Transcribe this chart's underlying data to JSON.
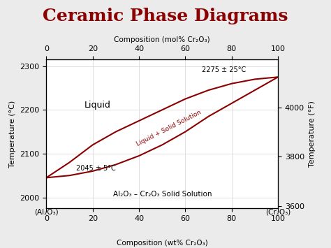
{
  "title": "Ceramic Phase Diagrams",
  "title_color": "#8B0000",
  "title_fontsize": 18,
  "title_fontweight": "bold",
  "bg_color": "#ebebeb",
  "plot_bg_color": "#ffffff",
  "curve_color": "#8B0000",
  "liquidus_x": [
    0,
    10,
    20,
    30,
    40,
    50,
    60,
    70,
    80,
    90,
    100
  ],
  "liquidus_y": [
    2045,
    2080,
    2120,
    2150,
    2175,
    2200,
    2225,
    2245,
    2260,
    2270,
    2275
  ],
  "solidus_x": [
    0,
    10,
    20,
    30,
    40,
    50,
    60,
    70,
    80,
    90,
    100
  ],
  "solidus_y": [
    2045,
    2050,
    2060,
    2075,
    2095,
    2120,
    2150,
    2185,
    2215,
    2245,
    2275
  ],
  "ylim_C": [
    1975,
    2315
  ],
  "ylim_F": [
    3590,
    4195
  ],
  "xlim": [
    0,
    100
  ],
  "xlabel_bottom": "Composition (wt% Cr₂O₃)",
  "xlabel_top": "Composition (mol% Cr₂O₃)",
  "ylabel_left": "Temperature (°C)",
  "ylabel_right": "Temperature (°F)",
  "label_liquid": "Liquid",
  "label_two_phase": "Liquid + Solid Solution",
  "label_solid": "Al₂O₃ – Cr₂O₃ Solid Solution",
  "annot_low": "2045 ± 5°C",
  "annot_high": "2275 ± 25°C",
  "label_xlow": "(Al₂O₃)",
  "label_xhigh": "(Cr₂O₃)",
  "yticks_C": [
    2000,
    2100,
    2200,
    2300
  ],
  "yticks_F": [
    3600,
    3800,
    4000
  ],
  "xticks": [
    0,
    20,
    40,
    60,
    80,
    100
  ]
}
